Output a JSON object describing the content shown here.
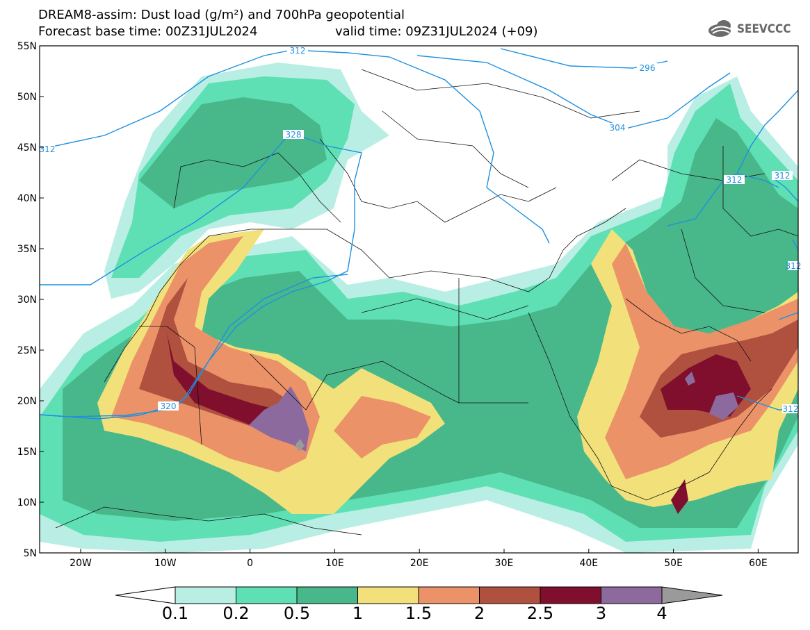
{
  "title_line1": "DREAM8-assim: Dust load (g/m²) and 700hPa geopotential",
  "title_line2_left": "Forecast base time: 00Z31JUL2024",
  "title_line2_right": "valid time: 09Z31JUL2024 (+09)",
  "logo_text": "SEEVCCC",
  "lat_labels": [
    "55N",
    "50N",
    "45N",
    "40N",
    "35N",
    "30N",
    "25N",
    "20N",
    "15N",
    "10N",
    "5N"
  ],
  "lon_labels": [
    "20W",
    "10W",
    "0",
    "10E",
    "20E",
    "30E",
    "40E",
    "50E",
    "60E"
  ],
  "colorbar": {
    "levels": [
      "0.1",
      "0.2",
      "0.5",
      "1",
      "1.5",
      "2",
      "2.5",
      "3",
      "4"
    ],
    "colors": [
      "#b9eee4",
      "#5fe0b4",
      "#48b88a",
      "#f2e17a",
      "#ec9268",
      "#b0503f",
      "#800f2e",
      "#8c6a9e",
      "#9a9a9a"
    ]
  },
  "contour_labels": [
    "312",
    "296",
    "304",
    "328",
    "312",
    "320",
    "312",
    "312",
    "312",
    "312"
  ],
  "map_features": [
    "dust-load-field",
    "geopotential-contours",
    "coastlines",
    "country-borders"
  ]
}
